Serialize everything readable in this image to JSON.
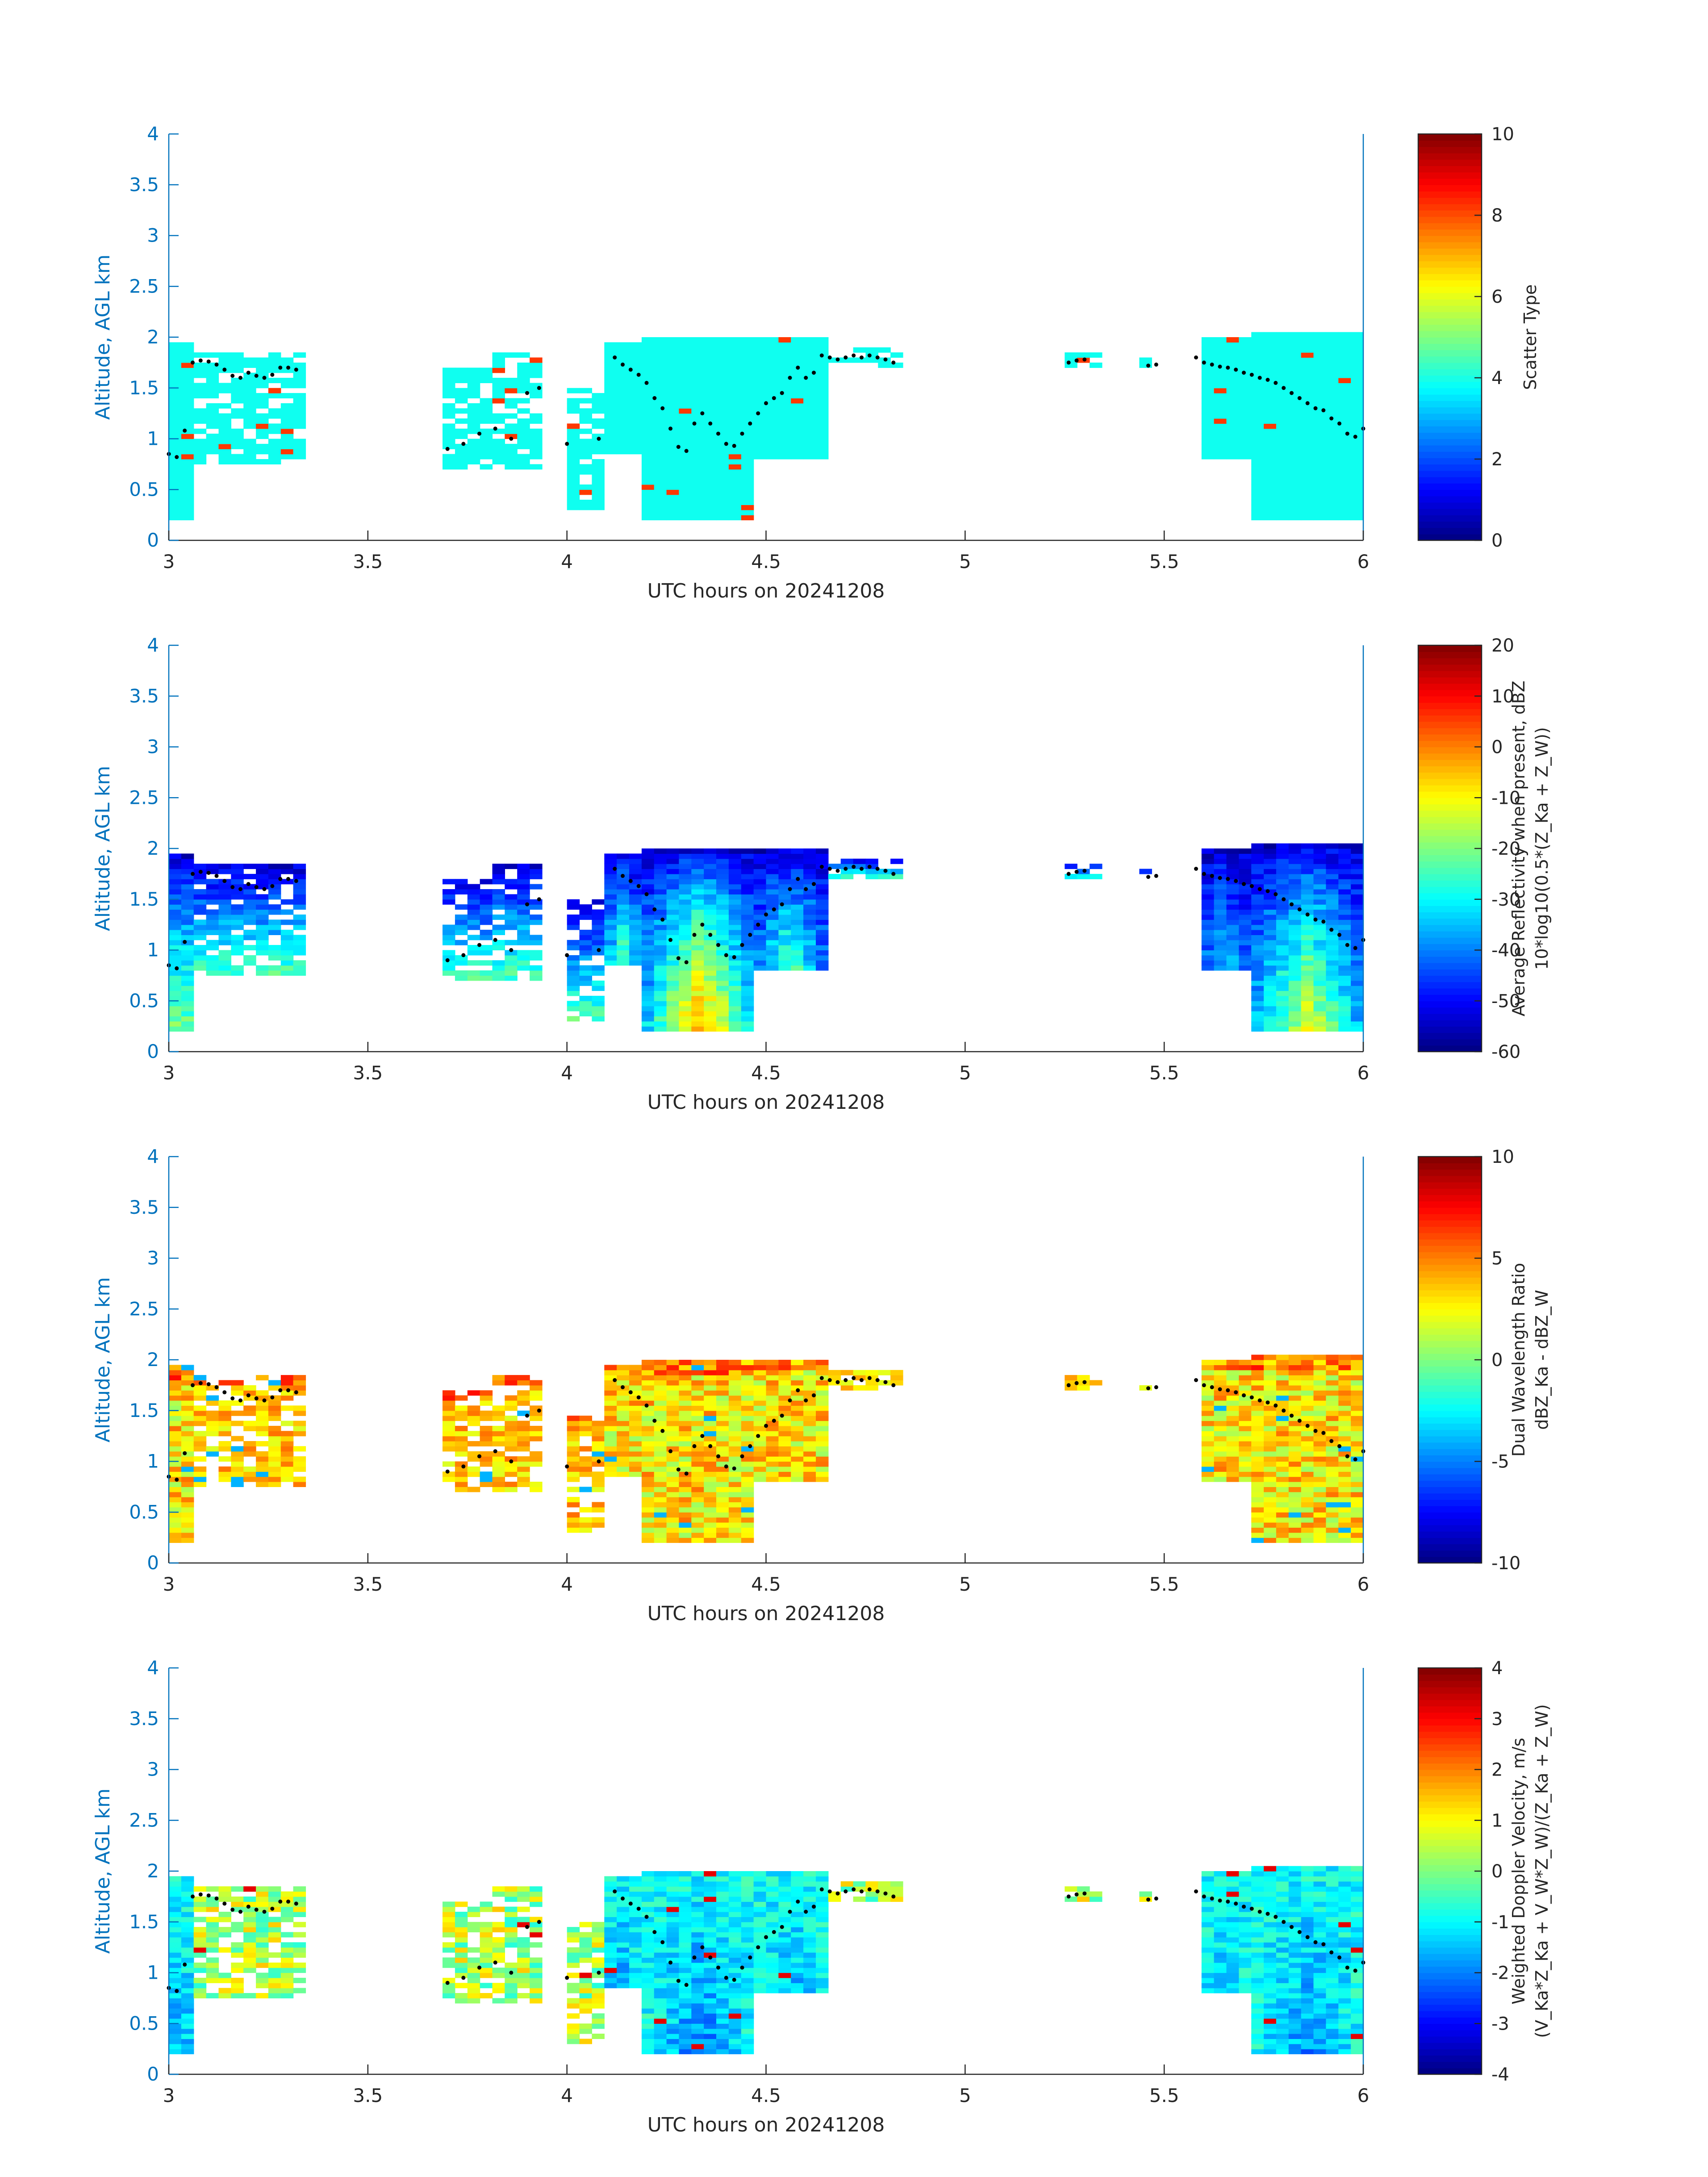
{
  "figure": {
    "title": "",
    "colors": {
      "axis_blue": "#0072BD",
      "text": "#262626",
      "background": "#ffffff",
      "dots": "#000000"
    }
  },
  "chart_data": [
    {
      "type": "heatmap",
      "xlabel": "UTC hours on 20241208",
      "ylabel": "Altitude, AGL km",
      "xlim": [
        3,
        6
      ],
      "ylim": [
        0,
        4
      ],
      "xticks": [
        3,
        3.5,
        4,
        4.5,
        5,
        5.5,
        6
      ],
      "xtick_labels": [
        "3",
        "3.5",
        "4",
        "4.5",
        "5",
        "5.5",
        "6"
      ],
      "yticks": [
        0,
        0.5,
        1,
        1.5,
        2,
        2.5,
        3,
        3.5,
        4
      ],
      "ytick_labels": [
        "0",
        "0.5",
        "1",
        "1.5",
        "2",
        "2.5",
        "3",
        "3.5",
        "4"
      ],
      "colorbar": {
        "colormap": "jet",
        "clim": [
          0,
          10
        ],
        "ticks": [
          0,
          2,
          4,
          6,
          8,
          10
        ],
        "tick_labels": [
          "0",
          "2",
          "4",
          "6",
          "8",
          "10"
        ],
        "label_lines": [
          "Scatter Type"
        ]
      },
      "field": "scatter",
      "grid": false,
      "dot_series": "cloud_top_markers"
    },
    {
      "type": "heatmap",
      "xlabel": "UTC hours on 20241208",
      "ylabel": "Altitude, AGL km",
      "xlim": [
        3,
        6
      ],
      "ylim": [
        0,
        4
      ],
      "xticks": [
        3,
        3.5,
        4,
        4.5,
        5,
        5.5,
        6
      ],
      "xtick_labels": [
        "3",
        "3.5",
        "4",
        "4.5",
        "5",
        "5.5",
        "6"
      ],
      "yticks": [
        0,
        0.5,
        1,
        1.5,
        2,
        2.5,
        3,
        3.5,
        4
      ],
      "ytick_labels": [
        "0",
        "0.5",
        "1",
        "1.5",
        "2",
        "2.5",
        "3",
        "3.5",
        "4"
      ],
      "colorbar": {
        "colormap": "jet",
        "clim": [
          -60,
          20
        ],
        "ticks": [
          -60,
          -50,
          -40,
          -30,
          -20,
          -10,
          0,
          10,
          20
        ],
        "tick_labels": [
          "-60",
          "-50",
          "-40",
          "-30",
          "-20",
          "-10",
          "0",
          "10",
          "20"
        ],
        "label_lines": [
          "Average Reflectivity when present, dBZ",
          "10*log10(0.5*(Z_Ka + Z_W))"
        ]
      },
      "field": "reflectivity",
      "grid": false,
      "dot_series": "cloud_top_markers"
    },
    {
      "type": "heatmap",
      "xlabel": "UTC hours on 20241208",
      "ylabel": "Altitude, AGL km",
      "xlim": [
        3,
        6
      ],
      "ylim": [
        0,
        4
      ],
      "xticks": [
        3,
        3.5,
        4,
        4.5,
        5,
        5.5,
        6
      ],
      "xtick_labels": [
        "3",
        "3.5",
        "4",
        "4.5",
        "5",
        "5.5",
        "6"
      ],
      "yticks": [
        0,
        0.5,
        1,
        1.5,
        2,
        2.5,
        3,
        3.5,
        4
      ],
      "ytick_labels": [
        "0",
        "0.5",
        "1",
        "1.5",
        "2",
        "2.5",
        "3",
        "3.5",
        "4"
      ],
      "colorbar": {
        "colormap": "jet",
        "clim": [
          -10,
          10
        ],
        "ticks": [
          -10,
          -5,
          0,
          5,
          10
        ],
        "tick_labels": [
          "-10",
          "-5",
          "0",
          "5",
          "10"
        ],
        "label_lines": [
          "Dual Wavelength Ratio",
          "dBZ_Ka - dBZ_W"
        ]
      },
      "field": "dwr",
      "grid": false,
      "dot_series": "cloud_top_markers"
    },
    {
      "type": "heatmap",
      "xlabel": "UTC hours on 20241208",
      "ylabel": "Altitude, AGL km",
      "xlim": [
        3,
        6
      ],
      "ylim": [
        0,
        4
      ],
      "xticks": [
        3,
        3.5,
        4,
        4.5,
        5,
        5.5,
        6
      ],
      "xtick_labels": [
        "3",
        "3.5",
        "4",
        "4.5",
        "5",
        "5.5",
        "6"
      ],
      "yticks": [
        0,
        0.5,
        1,
        1.5,
        2,
        2.5,
        3,
        3.5,
        4
      ],
      "ytick_labels": [
        "0",
        "0.5",
        "1",
        "1.5",
        "2",
        "2.5",
        "3",
        "3.5",
        "4"
      ],
      "colorbar": {
        "colormap": "jet",
        "clim": [
          -4,
          4
        ],
        "ticks": [
          -4,
          -3,
          -2,
          -1,
          0,
          1,
          2,
          3,
          4
        ],
        "tick_labels": [
          "-4",
          "-3",
          "-2",
          "-1",
          "0",
          "1",
          "2",
          "3",
          "4"
        ],
        "label_lines": [
          "Weighted Doppler Velocity, m/s",
          "(V_Ka*Z_Ka + V_W*Z_W)/(Z_Ka + Z_W)"
        ]
      },
      "field": "velocity",
      "grid": false,
      "dot_series": "cloud_top_markers"
    }
  ],
  "echo_regions": [
    {
      "t0": 3.0,
      "t1": 3.06,
      "base": 0.2,
      "top": 1.95,
      "core": 0.9
    },
    {
      "t0": 3.06,
      "t1": 3.33,
      "base": 0.75,
      "top": 1.85,
      "core": 0.3
    },
    {
      "t0": 3.69,
      "t1": 3.8,
      "base": 0.7,
      "top": 1.7,
      "core": 0.3
    },
    {
      "t0": 3.8,
      "t1": 3.95,
      "base": 0.7,
      "top": 1.85,
      "core": 0.3
    },
    {
      "t0": 4.0,
      "t1": 4.08,
      "base": 0.3,
      "top": 1.5,
      "core": 0.2
    },
    {
      "t0": 4.08,
      "t1": 4.2,
      "base": 0.85,
      "top": 1.95,
      "core": 0.6
    },
    {
      "t0": 4.2,
      "t1": 4.47,
      "base": 0.2,
      "top": 2.02,
      "core": 1.0
    },
    {
      "t0": 4.47,
      "t1": 4.65,
      "base": 0.8,
      "top": 2.0,
      "core": 0.6
    },
    {
      "t0": 4.65,
      "t1": 4.83,
      "base": 1.7,
      "top": 1.9,
      "core": 0.2
    },
    {
      "t0": 5.25,
      "t1": 5.33,
      "base": 1.7,
      "top": 1.85,
      "core": 0.1
    },
    {
      "t0": 5.45,
      "t1": 5.48,
      "base": 1.7,
      "top": 1.8,
      "core": 0.1
    },
    {
      "t0": 5.58,
      "t1": 5.72,
      "base": 0.8,
      "top": 2.0,
      "core": 0.4
    },
    {
      "t0": 5.72,
      "t1": 6.0,
      "base": 0.2,
      "top": 2.05,
      "core": 0.8
    }
  ],
  "cloud_top_markers": {
    "x": [
      3.0,
      3.02,
      3.04,
      3.06,
      3.08,
      3.1,
      3.12,
      3.14,
      3.16,
      3.18,
      3.2,
      3.22,
      3.24,
      3.26,
      3.28,
      3.3,
      3.32,
      3.7,
      3.74,
      3.78,
      3.82,
      3.86,
      3.9,
      3.93,
      4.0,
      4.08,
      4.12,
      4.14,
      4.16,
      4.18,
      4.2,
      4.22,
      4.24,
      4.26,
      4.28,
      4.3,
      4.32,
      4.34,
      4.36,
      4.38,
      4.4,
      4.42,
      4.44,
      4.46,
      4.48,
      4.5,
      4.52,
      4.54,
      4.56,
      4.58,
      4.6,
      4.62,
      4.64,
      4.66,
      4.68,
      4.7,
      4.72,
      4.74,
      4.76,
      4.78,
      4.8,
      4.82,
      5.26,
      5.28,
      5.3,
      5.46,
      5.48,
      5.58,
      5.6,
      5.62,
      5.64,
      5.66,
      5.68,
      5.7,
      5.72,
      5.74,
      5.76,
      5.78,
      5.8,
      5.82,
      5.84,
      5.86,
      5.88,
      5.9,
      5.92,
      5.94,
      5.96,
      5.98,
      6.0
    ],
    "y": [
      0.85,
      0.82,
      1.08,
      1.75,
      1.77,
      1.76,
      1.73,
      1.68,
      1.62,
      1.6,
      1.65,
      1.62,
      1.6,
      1.63,
      1.7,
      1.7,
      1.68,
      0.9,
      0.95,
      1.05,
      1.1,
      1.0,
      1.45,
      1.5,
      0.95,
      1.0,
      1.8,
      1.73,
      1.68,
      1.63,
      1.55,
      1.4,
      1.3,
      1.1,
      0.92,
      0.88,
      1.15,
      1.25,
      1.15,
      1.05,
      0.95,
      0.93,
      1.05,
      1.15,
      1.25,
      1.35,
      1.4,
      1.45,
      1.6,
      1.7,
      1.6,
      1.65,
      1.82,
      1.8,
      1.78,
      1.8,
      1.82,
      1.8,
      1.82,
      1.8,
      1.78,
      1.75,
      1.75,
      1.77,
      1.78,
      1.72,
      1.73,
      1.8,
      1.75,
      1.73,
      1.71,
      1.7,
      1.68,
      1.65,
      1.63,
      1.6,
      1.58,
      1.55,
      1.5,
      1.45,
      1.4,
      1.35,
      1.3,
      1.28,
      1.2,
      1.15,
      1.05,
      1.02,
      1.1
    ]
  }
}
